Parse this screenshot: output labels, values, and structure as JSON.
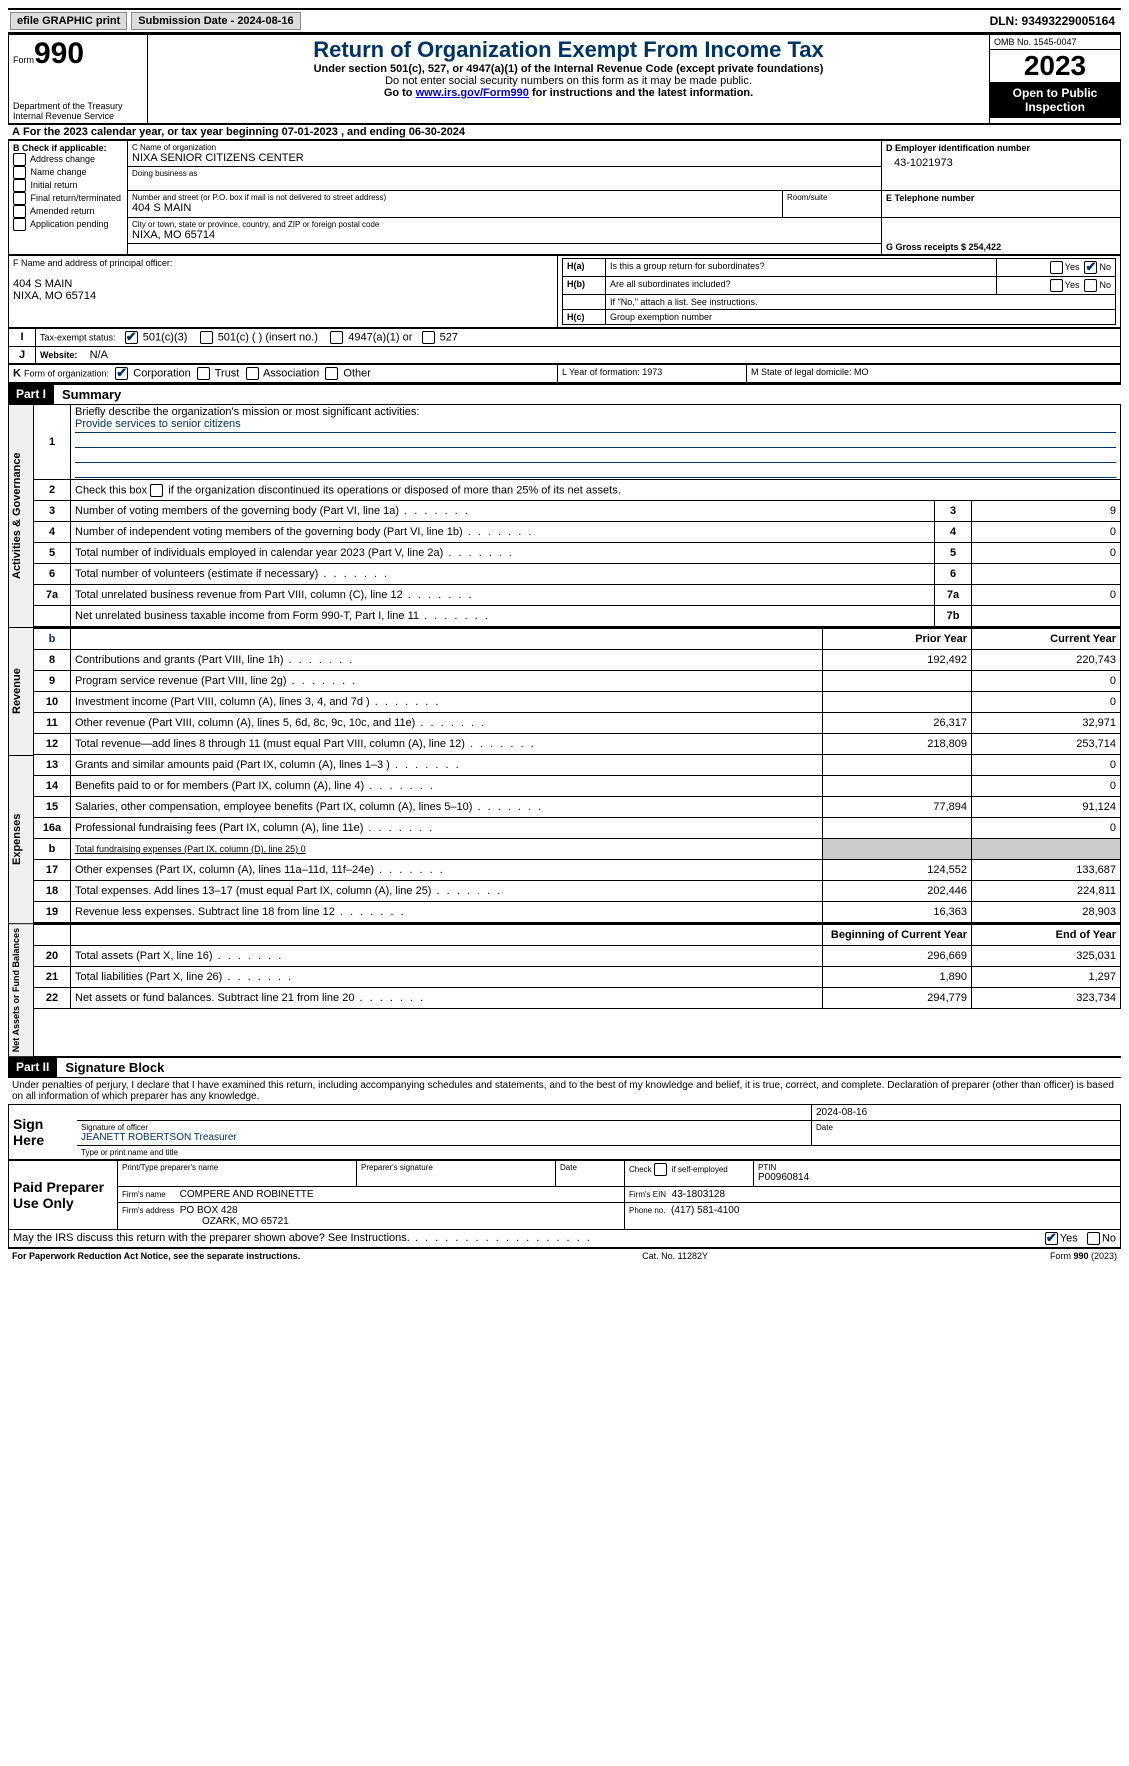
{
  "topbar": {
    "efile": "efile GRAPHIC print",
    "submission_label": "Submission Date - 2024-08-16",
    "dln_label": "DLN: 93493229005164"
  },
  "header": {
    "form_prefix": "Form",
    "form_number": "990",
    "dept1": "Department of the Treasury",
    "dept2": "Internal Revenue Service",
    "title": "Return of Organization Exempt From Income Tax",
    "subtitle": "Under section 501(c), 527, or 4947(a)(1) of the Internal Revenue Code (except private foundations)",
    "note1": "Do not enter social security numbers on this form as it may be made public.",
    "note2_pre": "Go to ",
    "note2_link": "www.irs.gov/Form990",
    "note2_post": " for instructions and the latest information.",
    "omb": "OMB No. 1545-0047",
    "year": "2023",
    "open_public": "Open to Public Inspection"
  },
  "sectionA": {
    "line": "For the 2023 calendar year, or tax year beginning 07-01-2023   , and ending 06-30-2024",
    "b_label": "B Check if applicable:",
    "b_opts": [
      "Address change",
      "Name change",
      "Initial return",
      "Final return/terminated",
      "Amended return",
      "Application pending"
    ],
    "c_label": "C Name of organization",
    "c_name": "NIXA SENIOR CITIZENS CENTER",
    "dba": "Doing business as",
    "street_label": "Number and street (or P.O. box if mail is not delivered to street address)",
    "street": "404 S MAIN",
    "room": "Room/suite",
    "city_label": "City or town, state or province, country, and ZIP or foreign postal code",
    "city": "NIXA, MO  65714",
    "d_label": "D Employer identification number",
    "d_ein": "43-1021973",
    "e_label": "E Telephone number",
    "g_label": "G Gross receipts $ 254,422",
    "f_label": "F  Name and address of principal officer:",
    "f_addr1": "404 S MAIN",
    "f_addr2": "NIXA, MO  65714",
    "ha_label": "Is this a group return for subordinates?",
    "hb_label": "Are all subordinates included?",
    "h_note": "If \"No,\" attach a list. See instructions.",
    "hc_label": "Group exemption number",
    "ha": "H(a)",
    "hb": "H(b)",
    "hc": "H(c)",
    "yes": "Yes",
    "no": "No",
    "i_label": "Tax-exempt status:",
    "i_501c3": "501(c)(3)",
    "i_501c": "501(c) (  ) (insert no.)",
    "i_4947": "4947(a)(1) or",
    "i_527": "527",
    "j_label": "Website:",
    "j_val": "N/A",
    "k_label": "Form of organization:",
    "k_corp": "Corporation",
    "k_trust": "Trust",
    "k_assoc": "Association",
    "k_other": "Other",
    "l_label": "L Year of formation: 1973",
    "m_label": "M State of legal domicile: MO",
    "letter_A": "A",
    "letter_I": "I",
    "letter_J": "J",
    "letter_K": "K"
  },
  "part1": {
    "header": "Part I",
    "title": "Summary",
    "q1": "Briefly describe the organization's mission or most significant activities:",
    "q1_ans": "Provide services to senior citizens",
    "q2": "Check this box        if the organization discontinued its operations or disposed of more than 25% of its net assets.",
    "lines_gov": [
      {
        "n": "3",
        "label": "Number of voting members of the governing body (Part VI, line 1a)",
        "idx": "3",
        "v": "9"
      },
      {
        "n": "4",
        "label": "Number of independent voting members of the governing body (Part VI, line 1b)",
        "idx": "4",
        "v": "0"
      },
      {
        "n": "5",
        "label": "Total number of individuals employed in calendar year 2023 (Part V, line 2a)",
        "idx": "5",
        "v": "0"
      },
      {
        "n": "6",
        "label": "Total number of volunteers (estimate if necessary)",
        "idx": "6",
        "v": ""
      },
      {
        "n": "7a",
        "label": "Total unrelated business revenue from Part VIII, column (C), line 12",
        "idx": "7a",
        "v": "0"
      },
      {
        "n": "",
        "label": "Net unrelated business taxable income from Form 990-T, Part I, line 11",
        "idx": "7b",
        "v": ""
      }
    ],
    "col_hdr_b": "b",
    "col_prior": "Prior Year",
    "col_current": "Current Year",
    "lines_rev": [
      {
        "n": "8",
        "label": "Contributions and grants (Part VIII, line 1h)",
        "p": "192,492",
        "c": "220,743"
      },
      {
        "n": "9",
        "label": "Program service revenue (Part VIII, line 2g)",
        "p": "",
        "c": "0"
      },
      {
        "n": "10",
        "label": "Investment income (Part VIII, column (A), lines 3, 4, and 7d )",
        "p": "",
        "c": "0"
      },
      {
        "n": "11",
        "label": "Other revenue (Part VIII, column (A), lines 5, 6d, 8c, 9c, 10c, and 11e)",
        "p": "26,317",
        "c": "32,971"
      },
      {
        "n": "12",
        "label": "Total revenue—add lines 8 through 11 (must equal Part VIII, column (A), line 12)",
        "p": "218,809",
        "c": "253,714"
      }
    ],
    "lines_exp": [
      {
        "n": "13",
        "label": "Grants and similar amounts paid (Part IX, column (A), lines 1–3 )",
        "p": "",
        "c": "0"
      },
      {
        "n": "14",
        "label": "Benefits paid to or for members (Part IX, column (A), line 4)",
        "p": "",
        "c": "0"
      },
      {
        "n": "15",
        "label": "Salaries, other compensation, employee benefits (Part IX, column (A), lines 5–10)",
        "p": "77,894",
        "c": "91,124"
      },
      {
        "n": "16a",
        "label": "Professional fundraising fees (Part IX, column (A), line 11e)",
        "p": "",
        "c": "0"
      },
      {
        "n": "b",
        "label": "Total fundraising expenses (Part IX, column (D), line 25) 0",
        "p": "GREY",
        "c": "GREY"
      },
      {
        "n": "17",
        "label": "Other expenses (Part IX, column (A), lines 11a–11d, 11f–24e)",
        "p": "124,552",
        "c": "133,687"
      },
      {
        "n": "18",
        "label": "Total expenses. Add lines 13–17 (must equal Part IX, column (A), line 25)",
        "p": "202,446",
        "c": "224,811"
      },
      {
        "n": "19",
        "label": "Revenue less expenses. Subtract line 18 from line 12",
        "p": "16,363",
        "c": "28,903"
      }
    ],
    "col_beg": "Beginning of Current Year",
    "col_end": "End of Year",
    "lines_net": [
      {
        "n": "20",
        "label": "Total assets (Part X, line 16)",
        "p": "296,669",
        "c": "325,031"
      },
      {
        "n": "21",
        "label": "Total liabilities (Part X, line 26)",
        "p": "1,890",
        "c": "1,297"
      },
      {
        "n": "22",
        "label": "Net assets or fund balances. Subtract line 21 from line 20",
        "p": "294,779",
        "c": "323,734"
      }
    ],
    "vlabels": {
      "gov": "Activities & Governance",
      "rev": "Revenue",
      "exp": "Expenses",
      "net": "Net Assets or Fund Balances"
    }
  },
  "part2": {
    "header": "Part II",
    "title": "Signature Block",
    "perjury": "Under penalties of perjury, I declare that I have examined this return, including accompanying schedules and statements, and to the best of my knowledge and belief, it is true, correct, and complete. Declaration of preparer (other than officer) is based on all information of which preparer has any knowledge.",
    "sign_here": "Sign Here",
    "sig_officer": "Signature of officer",
    "officer_name": "JEANETT ROBERTSON  Treasurer",
    "type_name": "Type or print name and title",
    "date_label": "Date",
    "sig_date": "2024-08-16",
    "paid_prep": "Paid Preparer Use Only",
    "print_name": "Print/Type preparer's name",
    "prep_sig": "Preparer's signature",
    "check_self": "Check         if self-employed",
    "ptin_label": "PTIN",
    "ptin": "P00960814",
    "firm_name_label": "Firm's name",
    "firm_name": "COMPERE AND ROBINETTE",
    "firm_ein_label": "Firm's EIN",
    "firm_ein": "43-1803128",
    "firm_addr_label": "Firm's address",
    "firm_addr1": "PO BOX 428",
    "firm_addr2": "OZARK, MO  65721",
    "phone_label": "Phone no.",
    "phone": "(417) 581-4100",
    "discuss": "May the IRS discuss this return with the preparer shown above? See Instructions.",
    "yes": "Yes",
    "no": "No"
  },
  "footer": {
    "paperwork": "For Paperwork Reduction Act Notice, see the separate instructions.",
    "cat": "Cat. No. 11282Y",
    "form": "Form 990 (2023)"
  }
}
